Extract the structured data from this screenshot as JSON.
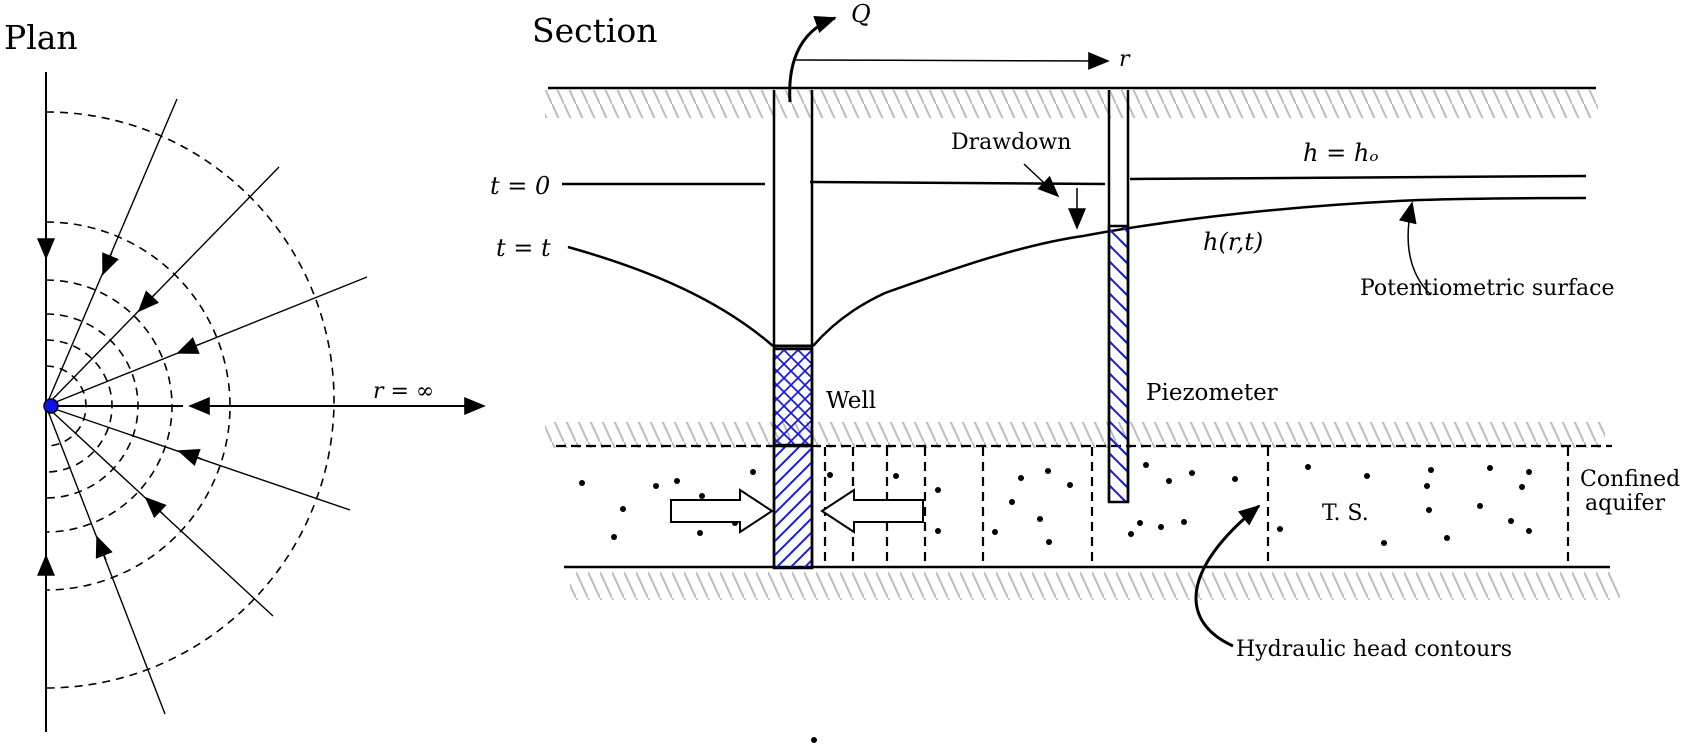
{
  "plan": {
    "title": "Plan",
    "r_label": "r = ∞"
  },
  "section": {
    "title": "Section",
    "q_label": "Q",
    "r_label": "r",
    "drawdown_label": "Drawdown",
    "h0_label": "h = hₒ",
    "hrt_label": "h(r,t)",
    "t0_label": "t = 0",
    "tt_label": "t = t",
    "surface_label": "Potentiometric surface",
    "well_label": "Well",
    "piezometer_label": "Piezometer",
    "aquifer_label_line1": "Confined",
    "aquifer_label_line2": "aquifer",
    "ts_label": "T. S.",
    "contours_label": "Hydraulic head contours"
  },
  "colors": {
    "hatch_blue": "#1a1ae6",
    "ground_hatch": "#bdbdbd",
    "ink": "#000000",
    "well_dot": "#1010ee"
  }
}
